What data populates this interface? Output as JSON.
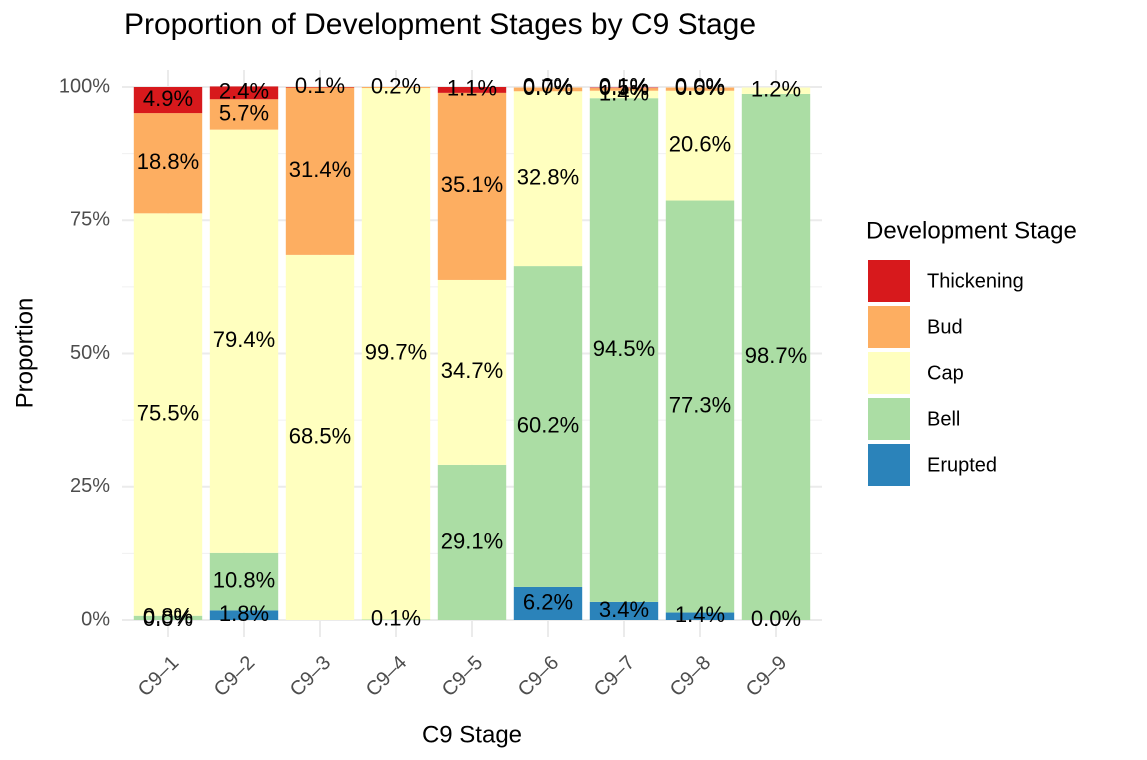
{
  "chart_data": {
    "type": "bar",
    "stacked": true,
    "title": "Proportion of Development Stages by C9 Stage",
    "x_label": "C9 Stage",
    "y_label": "Proportion",
    "legend_title": "Development Stage",
    "categories": [
      "C9–1",
      "C9–2",
      "C9–3",
      "C9–4",
      "C9–5",
      "C9–6",
      "C9–7",
      "C9–8",
      "C9–9"
    ],
    "series": [
      {
        "name": "Thickening",
        "color": "#d7191c",
        "values": [
          0.049,
          0.024,
          0.001,
          null,
          0.011,
          0.0,
          0.001,
          0.0,
          null
        ],
        "value_labels": [
          "4.9%",
          "2.4%",
          "0.1%",
          null,
          "1.1%",
          "0.0%",
          "0.1%",
          "0.0%",
          null
        ]
      },
      {
        "name": "Bud",
        "color": "#fdae61",
        "values": [
          0.188,
          0.057,
          0.314,
          0.002,
          0.351,
          0.007,
          0.005,
          0.006,
          null
        ],
        "value_labels": [
          "18.8%",
          "5.7%",
          "31.4%",
          "0.2%",
          "35.1%",
          "0.7%",
          "0.5%",
          "0.6%",
          null
        ]
      },
      {
        "name": "Cap",
        "color": "#ffffbf",
        "values": [
          0.755,
          0.794,
          0.685,
          0.997,
          0.347,
          0.328,
          0.014,
          0.206,
          0.012
        ],
        "value_labels": [
          "75.5%",
          "79.4%",
          "68.5%",
          "99.7%",
          "34.7%",
          "32.8%",
          "1.4%",
          "20.6%",
          "1.2%"
        ]
      },
      {
        "name": "Bell",
        "color": "#abdda4",
        "values": [
          0.008,
          0.108,
          null,
          0.001,
          0.291,
          0.602,
          0.945,
          0.773,
          0.987
        ],
        "value_labels": [
          "0.8%",
          "10.8%",
          null,
          "0.1%",
          "29.1%",
          "60.2%",
          "94.5%",
          "77.3%",
          "98.7%"
        ]
      },
      {
        "name": "Erupted",
        "color": "#2b83ba",
        "values": [
          0.0,
          0.018,
          null,
          null,
          null,
          0.062,
          0.034,
          0.014,
          0.0
        ],
        "value_labels": [
          "0.0%",
          "1.8%",
          null,
          null,
          null,
          "6.2%",
          "3.4%",
          "1.4%",
          "0.0%"
        ]
      }
    ],
    "ylim": [
      0,
      1
    ],
    "yticks": [
      {
        "value": 0,
        "label": "0%"
      },
      {
        "value": 0.25,
        "label": "25%"
      },
      {
        "value": 0.5,
        "label": "50%"
      },
      {
        "value": 0.75,
        "label": "75%"
      },
      {
        "value": 1,
        "label": "100%"
      }
    ],
    "grid": true
  }
}
